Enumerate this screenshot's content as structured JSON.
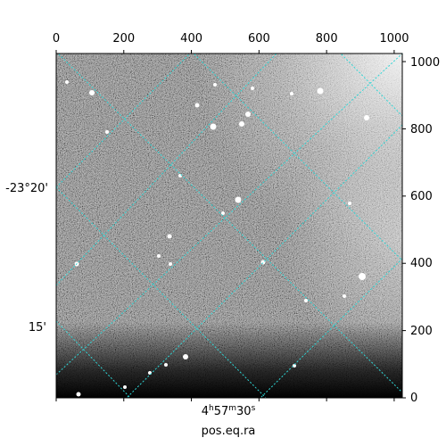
{
  "chart_data": {
    "type": "heatmap",
    "description_free": true,
    "xlabel": "pos.eq.ra",
    "ylabel": "",
    "pixel_axes": {
      "x": {
        "range": [
          0,
          1024
        ],
        "ticks": [
          0,
          200,
          400,
          600,
          800,
          1000
        ]
      },
      "y": {
        "range": [
          0,
          1024
        ],
        "ticks": [
          0,
          200,
          400,
          600,
          800,
          1000
        ]
      }
    },
    "world_ticks": {
      "ra": [
        {
          "h": "4",
          "m": "57",
          "s": "30"
        }
      ],
      "dec": [
        "-23°20'",
        "15'"
      ]
    },
    "grid": true,
    "grid_color": "#2fd6d6",
    "colormap": "gray",
    "image_background": "#8a8a8a"
  },
  "labels": {
    "x0": "0",
    "x200": "200",
    "x400": "400",
    "x600": "600",
    "x800": "800",
    "x1000": "1000",
    "y0": "0",
    "y200": "200",
    "y400": "400",
    "y600": "600",
    "y800": "800",
    "y1000": "1000",
    "dec1": "-23°20'",
    "dec2": "15'",
    "ra_h": "4",
    "ra_h_unit": "h",
    "ra_m": "57",
    "ra_m_unit": "m",
    "ra_s": "30",
    "ra_s_unit": "s",
    "xlabel": "pos.eq.ra"
  }
}
